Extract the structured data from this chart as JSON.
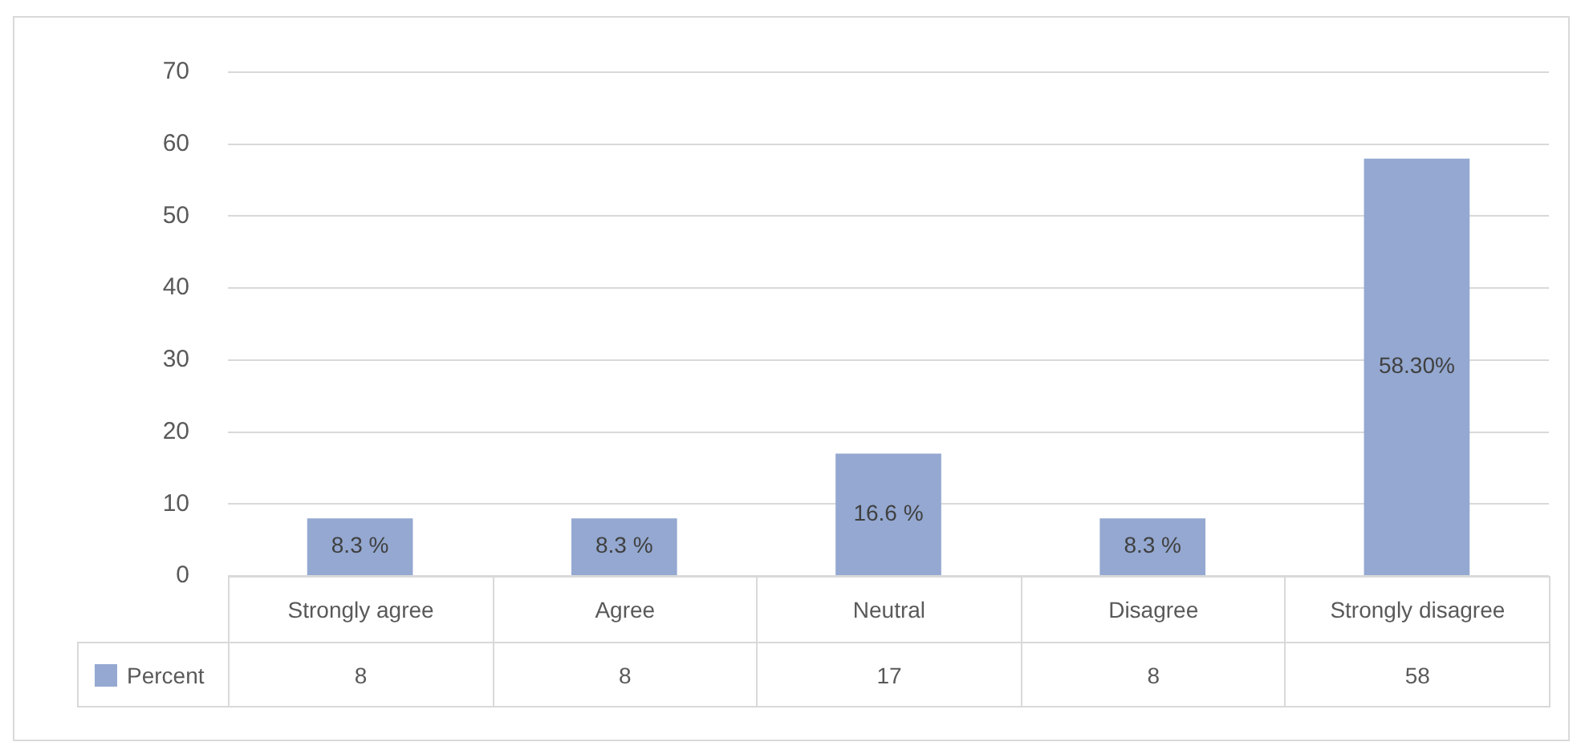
{
  "chart_data": {
    "type": "bar",
    "categories": [
      "Strongly agree",
      "Agree",
      "Neutral",
      "Disagree",
      "Strongly disagree"
    ],
    "series": [
      {
        "name": "Percent",
        "color": "#94a8d1",
        "values": [
          8,
          8,
          17,
          8,
          58
        ]
      }
    ],
    "annotations": [
      "8.3 %",
      "8.3 %",
      "16.6 %",
      "8.3 %",
      "58.30%"
    ],
    "ylim": [
      0,
      70
    ],
    "yticks": [
      0,
      10,
      20,
      30,
      40,
      50,
      60,
      70
    ],
    "grid": "y",
    "legend": "bottom left",
    "data_labels": true
  }
}
